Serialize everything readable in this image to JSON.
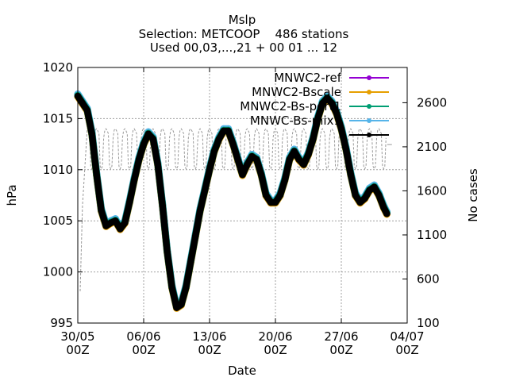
{
  "chart_data": {
    "type": "line",
    "title": "Mslp",
    "subtitle_lines": [
      "Selection: METCOOP    486 stations",
      "Used 00,03,...,21 + 00 01 ... 12"
    ],
    "xlabel": "Date",
    "ylabel": "hPa",
    "y2label": "No cases",
    "x_range": [
      "2023-05-30T00",
      "2023-07-04T00"
    ],
    "ylim": [
      995,
      1020
    ],
    "y2lim": [
      100,
      3000
    ],
    "x_ticks": [
      {
        "date": "2023-05-30T00",
        "label_top": "30/05",
        "label_bottom": "00Z"
      },
      {
        "date": "2023-06-06T00",
        "label_top": "06/06",
        "label_bottom": "00Z"
      },
      {
        "date": "2023-06-13T00",
        "label_top": "13/06",
        "label_bottom": "00Z"
      },
      {
        "date": "2023-06-20T00",
        "label_top": "20/06",
        "label_bottom": "00Z"
      },
      {
        "date": "2023-06-27T00",
        "label_top": "27/06",
        "label_bottom": "00Z"
      },
      {
        "date": "2023-07-04T00",
        "label_top": "04/07",
        "label_bottom": "00Z"
      }
    ],
    "y_ticks": [
      995,
      1000,
      1005,
      1010,
      1015,
      1020
    ],
    "y2_ticks": [
      100,
      600,
      1100,
      1600,
      2100,
      2600
    ],
    "grid": true,
    "legend_position": "top-right",
    "series": [
      {
        "name": "MNWC2-ref",
        "color": "#9400d3",
        "marker": "circle",
        "offset": 0.0
      },
      {
        "name": "MNWC2-Bscale",
        "color": "#e69f00",
        "marker": "circle",
        "offset": -0.05
      },
      {
        "name": "MNWC2-Bs-pert1",
        "color": "#009e73",
        "marker": "circle",
        "offset": 0.05
      },
      {
        "name": "MNWC-Bs-mix1",
        "color": "#56b4e9",
        "marker": "circle",
        "offset": 0.2
      },
      {
        "name": "",
        "color": "#000000",
        "marker": "circle",
        "offset": 0.0
      }
    ],
    "mslp_points": [
      [
        "2023-05-30T00",
        1017.2
      ],
      [
        "2023-05-30T12",
        1016.5
      ],
      [
        "2023-05-31T00",
        1015.8
      ],
      [
        "2023-05-31T12",
        1013.5
      ],
      [
        "2023-06-01T00",
        1009.5
      ],
      [
        "2023-06-01T12",
        1006.0
      ],
      [
        "2023-06-02T00",
        1004.5
      ],
      [
        "2023-06-02T12",
        1004.8
      ],
      [
        "2023-06-03T00",
        1005.0
      ],
      [
        "2023-06-03T12",
        1004.2
      ],
      [
        "2023-06-04T00",
        1004.8
      ],
      [
        "2023-06-04T12",
        1006.8
      ],
      [
        "2023-06-05T00",
        1009.0
      ],
      [
        "2023-06-05T12",
        1011.0
      ],
      [
        "2023-06-06T00",
        1012.5
      ],
      [
        "2023-06-06T12",
        1013.5
      ],
      [
        "2023-06-07T00",
        1013.0
      ],
      [
        "2023-06-07T12",
        1010.5
      ],
      [
        "2023-06-08T00",
        1006.5
      ],
      [
        "2023-06-08T12",
        1002.0
      ],
      [
        "2023-06-09T00",
        998.5
      ],
      [
        "2023-06-09T12",
        996.5
      ],
      [
        "2023-06-10T00",
        996.8
      ],
      [
        "2023-06-10T12",
        998.5
      ],
      [
        "2023-06-11T00",
        1001.0
      ],
      [
        "2023-06-11T12",
        1003.5
      ],
      [
        "2023-06-12T00",
        1006.0
      ],
      [
        "2023-06-12T12",
        1008.0
      ],
      [
        "2023-06-13T00",
        1010.0
      ],
      [
        "2023-06-13T12",
        1011.8
      ],
      [
        "2023-06-14T00",
        1013.0
      ],
      [
        "2023-06-14T12",
        1013.8
      ],
      [
        "2023-06-15T00",
        1013.8
      ],
      [
        "2023-06-15T12",
        1012.5
      ],
      [
        "2023-06-16T00",
        1011.0
      ],
      [
        "2023-06-16T12",
        1009.5
      ],
      [
        "2023-06-17T00",
        1010.5
      ],
      [
        "2023-06-17T12",
        1011.3
      ],
      [
        "2023-06-18T00",
        1011.0
      ],
      [
        "2023-06-18T12",
        1009.5
      ],
      [
        "2023-06-19T00",
        1007.5
      ],
      [
        "2023-06-19T12",
        1006.8
      ],
      [
        "2023-06-20T00",
        1006.8
      ],
      [
        "2023-06-20T12",
        1007.5
      ],
      [
        "2023-06-21T00",
        1009.0
      ],
      [
        "2023-06-21T12",
        1011.0
      ],
      [
        "2023-06-22T00",
        1011.8
      ],
      [
        "2023-06-22T12",
        1011.0
      ],
      [
        "2023-06-23T00",
        1010.5
      ],
      [
        "2023-06-23T12",
        1011.5
      ],
      [
        "2023-06-24T00",
        1013.0
      ],
      [
        "2023-06-24T12",
        1015.0
      ],
      [
        "2023-06-25T00",
        1016.5
      ],
      [
        "2023-06-25T12",
        1017.0
      ],
      [
        "2023-06-26T00",
        1016.5
      ],
      [
        "2023-06-26T12",
        1015.5
      ],
      [
        "2023-06-27T00",
        1014.0
      ],
      [
        "2023-06-27T12",
        1012.0
      ],
      [
        "2023-06-28T00",
        1009.5
      ],
      [
        "2023-06-28T12",
        1007.5
      ],
      [
        "2023-06-29T00",
        1006.8
      ],
      [
        "2023-06-29T12",
        1007.2
      ],
      [
        "2023-06-30T00",
        1008.0
      ],
      [
        "2023-06-30T12",
        1008.3
      ],
      [
        "2023-07-01T00",
        1007.5
      ],
      [
        "2023-07-01T12",
        1006.3
      ],
      [
        "2023-07-01T20",
        1005.7
      ]
    ],
    "no_cases": {
      "description_series": "No cases",
      "color": "#999999",
      "start_points": [
        [
          "2023-05-30T06",
          461
        ],
        [
          "2023-05-30T12",
          1430
        ]
      ],
      "cycle_start": "2023-05-31T00",
      "cycle_end": "2023-07-01T20",
      "cycle_step_hours": 3,
      "cycle_pattern": [
        2305,
        2280,
        2250,
        1880,
        1850,
        1880,
        2200,
        2290
      ],
      "tail_points": [
        [
          "2023-07-02T03",
          2125
        ]
      ]
    }
  }
}
